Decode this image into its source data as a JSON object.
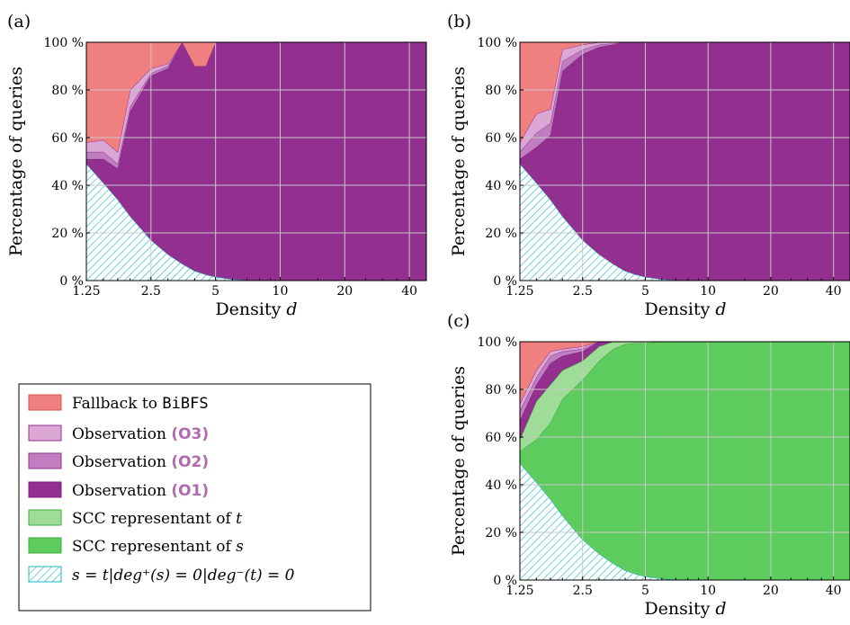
{
  "colors": {
    "fallback": "#f08080",
    "o3": "#dba8d6",
    "o2": "#c07ec0",
    "o1": "#93308f",
    "scc_t": "#9edc98",
    "scc_s": "#5dcb5d",
    "trivial_stroke": "#26b7c5",
    "grid": "#c8c8c8"
  },
  "legend": {
    "items": [
      {
        "key": "fallback",
        "prefix": "Fallback to ",
        "code": "BiBFS",
        "suffix": ""
      },
      {
        "key": "o3",
        "prefix": "Observation ",
        "code": "",
        "suffix": "(O3)"
      },
      {
        "key": "o2",
        "prefix": "Observation ",
        "code": "",
        "suffix": "(O2)"
      },
      {
        "key": "o1",
        "prefix": "Observation ",
        "code": "",
        "suffix": "(O1)"
      },
      {
        "key": "scc_t",
        "prefix": "SCC representant of ",
        "code": "",
        "suffix": "t"
      },
      {
        "key": "scc_s",
        "prefix": "SCC representant of ",
        "code": "",
        "suffix": "s"
      },
      {
        "key": "trivial",
        "prefix": "s = t|deg⁺(s) = 0|deg⁻(t) = 0",
        "code": "",
        "suffix": ""
      }
    ]
  },
  "chart_data": [
    {
      "label": "(a)",
      "type": "area",
      "xlabel": "Density d",
      "ylabel": "Percentage of queries",
      "xscale": "log",
      "xlim": [
        1.25,
        48
      ],
      "ylim": [
        0,
        100
      ],
      "grid": true,
      "xticks": [
        1.25,
        2.5,
        5,
        10,
        20,
        40
      ],
      "xtick_labels": [
        "1.25",
        "2.5",
        "5",
        "10",
        "20",
        "40"
      ],
      "yticks": [
        0,
        20,
        40,
        60,
        80,
        100
      ],
      "ytick_labels": [
        "0 %",
        "20 %",
        "40 %",
        "60 %",
        "80 %",
        "100 %"
      ],
      "x": [
        1.25,
        1.5,
        1.75,
        2.0,
        2.5,
        3.0,
        3.5,
        4.0,
        4.5,
        5.0,
        6,
        7,
        8,
        10,
        12,
        15,
        20,
        25,
        30,
        40,
        48
      ],
      "series": [
        {
          "key": "trivial",
          "values": [
            49,
            41,
            34,
            27,
            17,
            11,
            7,
            4,
            2.5,
            1.5,
            0.5,
            0.2,
            0,
            0,
            0,
            0,
            0,
            0,
            0,
            0,
            0
          ]
        },
        {
          "key": "o1",
          "values": [
            2,
            10,
            13,
            44,
            69,
            78,
            93,
            86,
            87.5,
            98.5,
            99.5,
            99.8,
            100,
            100,
            100,
            100,
            100,
            100,
            100,
            100,
            100
          ]
        },
        {
          "key": "o2",
          "values": [
            3,
            3,
            2,
            2,
            1,
            1,
            0,
            0,
            0,
            0,
            0,
            0,
            0,
            0,
            0,
            0,
            0,
            0,
            0,
            0,
            0
          ]
        },
        {
          "key": "o3",
          "values": [
            4,
            5,
            5,
            7,
            2,
            1,
            0,
            0,
            0,
            0,
            0,
            0,
            0,
            0,
            0,
            0,
            0,
            0,
            0,
            0,
            0
          ]
        },
        {
          "key": "fallback",
          "values": [
            42,
            41,
            46,
            20,
            11,
            9,
            0,
            10,
            10,
            0,
            0,
            0,
            0,
            0,
            0,
            0,
            0,
            0,
            0,
            0,
            0
          ]
        }
      ]
    },
    {
      "label": "(b)",
      "type": "area",
      "xlabel": "Density d",
      "ylabel": "Percentage of queries",
      "xscale": "log",
      "xlim": [
        1.25,
        48
      ],
      "ylim": [
        0,
        100
      ],
      "grid": true,
      "xticks": [
        1.25,
        2.5,
        5,
        10,
        20,
        40
      ],
      "xtick_labels": [
        "1.25",
        "2.5",
        "5",
        "10",
        "20",
        "40"
      ],
      "yticks": [
        0,
        20,
        40,
        60,
        80,
        100
      ],
      "ytick_labels": [
        "0 %",
        "20 %",
        "40 %",
        "60 %",
        "80 %",
        "100 %"
      ],
      "x": [
        1.25,
        1.5,
        1.75,
        2.0,
        2.5,
        3.0,
        3.5,
        4.0,
        4.5,
        5.0,
        6,
        7,
        8,
        10,
        12,
        15,
        20,
        25,
        30,
        40,
        48
      ],
      "series": [
        {
          "key": "trivial",
          "values": [
            49,
            41,
            34,
            27,
            17,
            11,
            7,
            4,
            2.5,
            1.5,
            0.5,
            0.2,
            0,
            0,
            0,
            0,
            0,
            0,
            0,
            0,
            0
          ]
        },
        {
          "key": "o1",
          "values": [
            2,
            15,
            27,
            61,
            78,
            87,
            92,
            96,
            97.5,
            98.5,
            99.5,
            99.8,
            100,
            100,
            100,
            100,
            100,
            100,
            100,
            100,
            100
          ]
        },
        {
          "key": "o2",
          "values": [
            3,
            6,
            5,
            4,
            2,
            1,
            0.5,
            0,
            0,
            0,
            0,
            0,
            0,
            0,
            0,
            0,
            0,
            0,
            0,
            0,
            0
          ]
        },
        {
          "key": "o3",
          "values": [
            4,
            8,
            6,
            5,
            2,
            1,
            0.5,
            0,
            0,
            0,
            0,
            0,
            0,
            0,
            0,
            0,
            0,
            0,
            0,
            0,
            0
          ]
        },
        {
          "key": "fallback",
          "values": [
            42,
            30,
            28,
            3,
            1,
            0,
            0,
            0,
            0,
            0,
            0,
            0,
            0,
            0,
            0,
            0,
            0,
            0,
            0,
            0,
            0
          ]
        }
      ]
    },
    {
      "label": "(c)",
      "type": "area",
      "xlabel": "Density d",
      "ylabel": "Percentage of queries",
      "xscale": "log",
      "xlim": [
        1.25,
        48
      ],
      "ylim": [
        0,
        100
      ],
      "grid": true,
      "xticks": [
        1.25,
        2.5,
        5,
        10,
        20,
        40
      ],
      "xtick_labels": [
        "1.25",
        "2.5",
        "5",
        "10",
        "20",
        "40"
      ],
      "yticks": [
        0,
        20,
        40,
        60,
        80,
        100
      ],
      "ytick_labels": [
        "0 %",
        "20 %",
        "40 %",
        "60 %",
        "80 %",
        "100 %"
      ],
      "x": [
        1.25,
        1.5,
        1.75,
        2.0,
        2.5,
        3.0,
        3.5,
        4.0,
        4.5,
        5.0,
        6,
        7,
        8,
        10,
        12,
        15,
        20,
        25,
        30,
        40,
        48
      ],
      "series": [
        {
          "key": "trivial",
          "values": [
            49,
            41,
            34,
            27,
            17,
            11,
            7,
            4,
            2.5,
            1.5,
            0.5,
            0.2,
            0,
            0,
            0,
            0,
            0,
            0,
            0,
            0,
            0
          ]
        },
        {
          "key": "scc_s",
          "values": [
            5,
            18,
            32,
            49,
            67,
            81,
            90,
            95,
            97,
            98,
            99.5,
            99.8,
            100,
            100,
            100,
            100,
            100,
            100,
            100,
            100,
            100
          ]
        },
        {
          "key": "scc_t",
          "values": [
            5,
            16,
            16,
            12,
            8,
            6,
            3,
            1,
            0.5,
            0.5,
            0,
            0,
            0,
            0,
            0,
            0,
            0,
            0,
            0,
            0,
            0
          ]
        },
        {
          "key": "o1",
          "values": [
            8,
            7,
            9,
            6,
            4,
            2,
            0,
            0,
            0,
            0,
            0,
            0,
            0,
            0,
            0,
            0,
            0,
            0,
            0,
            0,
            0
          ]
        },
        {
          "key": "o2",
          "values": [
            4,
            3,
            3,
            2,
            1,
            0,
            0,
            0,
            0,
            0,
            0,
            0,
            0,
            0,
            0,
            0,
            0,
            0,
            0,
            0,
            0
          ]
        },
        {
          "key": "o3",
          "values": [
            3,
            3,
            2,
            1,
            1,
            0,
            0,
            0,
            0,
            0,
            0,
            0,
            0,
            0,
            0,
            0,
            0,
            0,
            0,
            0,
            0
          ]
        },
        {
          "key": "fallback",
          "values": [
            26,
            12,
            4,
            3,
            2,
            0,
            0,
            0,
            0,
            0,
            0,
            0,
            0,
            0,
            0,
            0,
            0,
            0,
            0,
            0,
            0
          ]
        }
      ]
    }
  ]
}
